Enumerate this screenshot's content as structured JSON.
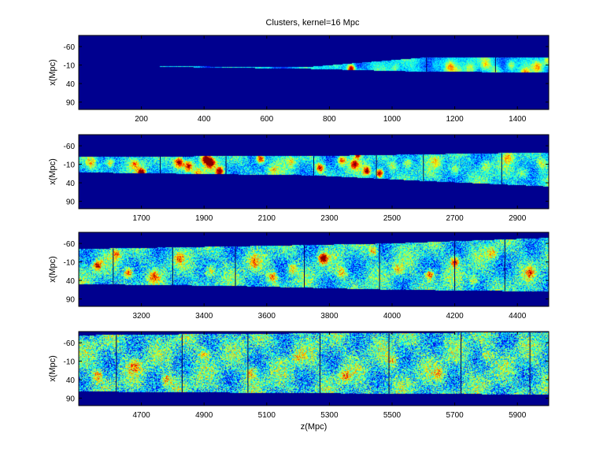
{
  "chart_data": {
    "type": "heatmap",
    "title": "Clusters, kernel=16 Mpc",
    "colormap": "jet",
    "background_color": "#00008f",
    "panels": [
      {
        "name": "",
        "xlim": [
          0,
          1500
        ],
        "ylim": [
          -90,
          110
        ],
        "x_ticks": [
          200,
          400,
          600,
          800,
          1000,
          1200,
          1400
        ],
        "y_ticks": [
          -60,
          -10,
          40,
          90
        ],
        "ylabel": "x(Mpc)",
        "xlabel": "",
        "survey_edges": {
          "z": [
            260,
            720,
            1100,
            1500
          ],
          "x_low": [
            -7,
            -4,
            -30,
            -31
          ],
          "x_high": [
            -5,
            0,
            8,
            10
          ]
        },
        "seam_z": [
          1110,
          1330
        ],
        "noise_level": 0.18,
        "hotspots": [
          {
            "z": 870,
            "x": 0,
            "v": 1.0,
            "r": 11
          },
          {
            "z": 900,
            "x": 8,
            "v": 0.45,
            "r": 9
          },
          {
            "z": 1010,
            "x": -2,
            "v": 0.35,
            "r": 10
          },
          {
            "z": 1140,
            "x": -10,
            "v": 0.35,
            "r": 14
          },
          {
            "z": 1185,
            "x": -5,
            "v": 0.55,
            "r": 14
          },
          {
            "z": 1250,
            "x": 0,
            "v": 0.45,
            "r": 15
          },
          {
            "z": 1300,
            "x": -12,
            "v": 0.5,
            "r": 14
          },
          {
            "z": 1330,
            "x": 5,
            "v": 0.45,
            "r": 14
          },
          {
            "z": 1380,
            "x": -10,
            "v": 0.5,
            "r": 14
          },
          {
            "z": 1425,
            "x": 12,
            "v": 0.55,
            "r": 13
          },
          {
            "z": 1465,
            "x": -5,
            "v": 0.55,
            "r": 14
          },
          {
            "z": 1495,
            "x": -20,
            "v": 0.45,
            "r": 10
          },
          {
            "z": 1210,
            "x": 15,
            "v": 0.35,
            "r": 14
          },
          {
            "z": 1065,
            "x": 5,
            "v": 0.25,
            "r": 12
          },
          {
            "z": 540,
            "x": -3,
            "v": 0.22,
            "r": 10
          },
          {
            "z": 660,
            "x": -2,
            "v": 0.2,
            "r": 10
          },
          {
            "z": 420,
            "x": -4,
            "v": 0.2,
            "r": 10
          }
        ]
      },
      {
        "name": "",
        "xlim": [
          1500,
          3000
        ],
        "ylim": [
          -90,
          110
        ],
        "x_ticks": [
          1700,
          1900,
          2100,
          2300,
          2500,
          2700,
          2900
        ],
        "y_ticks": [
          -60,
          -10,
          40,
          90
        ],
        "ylabel": "x(Mpc)",
        "xlabel": "",
        "survey_edges": {
          "z": [
            1500,
            2250,
            2600,
            3000
          ],
          "x_low": [
            -31,
            -32,
            -37,
            -42
          ],
          "x_high": [
            12,
            20,
            35,
            50
          ]
        },
        "seam_z": [
          1760,
          1970,
          2250,
          2450,
          2600,
          2850
        ],
        "noise_level": 0.3,
        "hotspots": [
          {
            "z": 1540,
            "x": -12,
            "v": 0.5,
            "r": 14
          },
          {
            "z": 1600,
            "x": -14,
            "v": 0.6,
            "r": 13
          },
          {
            "z": 1680,
            "x": -10,
            "v": 0.5,
            "r": 12
          },
          {
            "z": 1700,
            "x": 12,
            "v": 0.95,
            "r": 11
          },
          {
            "z": 1820,
            "x": -15,
            "v": 0.95,
            "r": 14
          },
          {
            "z": 1850,
            "x": -5,
            "v": 0.85,
            "r": 14
          },
          {
            "z": 1880,
            "x": 15,
            "v": 0.55,
            "r": 13
          },
          {
            "z": 1905,
            "x": -25,
            "v": 0.9,
            "r": 11
          },
          {
            "z": 1920,
            "x": -15,
            "v": 1.0,
            "r": 13
          },
          {
            "z": 1950,
            "x": 10,
            "v": 0.95,
            "r": 12
          },
          {
            "z": 2080,
            "x": -25,
            "v": 0.9,
            "r": 12
          },
          {
            "z": 2120,
            "x": 5,
            "v": 0.45,
            "r": 13
          },
          {
            "z": 2180,
            "x": -18,
            "v": 0.45,
            "r": 13
          },
          {
            "z": 2270,
            "x": 0,
            "v": 0.85,
            "r": 11
          },
          {
            "z": 2340,
            "x": -20,
            "v": 0.75,
            "r": 12
          },
          {
            "z": 2380,
            "x": -10,
            "v": 0.8,
            "r": 11
          },
          {
            "z": 2420,
            "x": 8,
            "v": 0.85,
            "r": 11
          },
          {
            "z": 2390,
            "x": -35,
            "v": 0.85,
            "r": 8
          },
          {
            "z": 2460,
            "x": 15,
            "v": 1.0,
            "r": 11
          },
          {
            "z": 2500,
            "x": -5,
            "v": 0.45,
            "r": 13
          },
          {
            "z": 2550,
            "x": -15,
            "v": 0.55,
            "r": 13
          },
          {
            "z": 2640,
            "x": -18,
            "v": 0.45,
            "r": 14
          },
          {
            "z": 2700,
            "x": 5,
            "v": 0.5,
            "r": 15
          },
          {
            "z": 2800,
            "x": -5,
            "v": 0.45,
            "r": 15
          },
          {
            "z": 2870,
            "x": -28,
            "v": 0.5,
            "r": 14
          },
          {
            "z": 2920,
            "x": 15,
            "v": 0.45,
            "r": 15
          },
          {
            "z": 2980,
            "x": -10,
            "v": 0.45,
            "r": 14
          }
        ]
      },
      {
        "name": "",
        "xlim": [
          3000,
          4500
        ],
        "ylim": [
          -90,
          110
        ],
        "x_ticks": [
          3200,
          3400,
          3600,
          3800,
          4000,
          4200,
          4400
        ],
        "y_ticks": [
          -60,
          -10,
          40,
          90
        ],
        "ylabel": "x(Mpc)",
        "xlabel": "",
        "survey_edges": {
          "z": [
            3000,
            3500,
            4000,
            4500
          ],
          "x_low": [
            -45,
            -52,
            -60,
            -75
          ],
          "x_high": [
            50,
            55,
            65,
            70
          ]
        },
        "seam_z": [
          3110,
          3300,
          3500,
          3720,
          3960,
          4200,
          4360
        ],
        "noise_level": 0.38,
        "hotspots": [
          {
            "z": 3060,
            "x": 0,
            "v": 0.75,
            "r": 12
          },
          {
            "z": 3120,
            "x": -30,
            "v": 0.55,
            "r": 13
          },
          {
            "z": 3160,
            "x": 20,
            "v": 0.75,
            "r": 13
          },
          {
            "z": 3240,
            "x": 30,
            "v": 0.6,
            "r": 14
          },
          {
            "z": 3320,
            "x": -20,
            "v": 0.55,
            "r": 14
          },
          {
            "z": 3420,
            "x": 15,
            "v": 0.55,
            "r": 15
          },
          {
            "z": 3560,
            "x": -10,
            "v": 0.5,
            "r": 15
          },
          {
            "z": 3620,
            "x": 30,
            "v": 0.65,
            "r": 14
          },
          {
            "z": 3680,
            "x": 10,
            "v": 0.5,
            "r": 14
          },
          {
            "z": 3780,
            "x": -20,
            "v": 1.0,
            "r": 12
          },
          {
            "z": 3840,
            "x": 20,
            "v": 0.55,
            "r": 13
          },
          {
            "z": 3940,
            "x": -40,
            "v": 0.55,
            "r": 14
          },
          {
            "z": 4020,
            "x": 10,
            "v": 0.5,
            "r": 15
          },
          {
            "z": 4120,
            "x": 25,
            "v": 0.75,
            "r": 13
          },
          {
            "z": 4200,
            "x": -10,
            "v": 0.75,
            "r": 12
          },
          {
            "z": 4260,
            "x": 40,
            "v": 0.5,
            "r": 14
          },
          {
            "z": 4320,
            "x": -35,
            "v": 0.5,
            "r": 14
          },
          {
            "z": 4440,
            "x": 20,
            "v": 0.55,
            "r": 14
          }
        ]
      },
      {
        "name": "",
        "xlim": [
          4500,
          6000
        ],
        "ylim": [
          -90,
          110
        ],
        "x_ticks": [
          4700,
          4900,
          5100,
          5300,
          5500,
          5700,
          5900
        ],
        "y_ticks": [
          -60,
          -10,
          40,
          90
        ],
        "ylabel": "x(Mpc)",
        "xlabel": "z(Mpc)",
        "survey_edges": {
          "z": [
            4500,
            5000,
            5500,
            6000
          ],
          "x_low": [
            -80,
            -84,
            -86,
            -88
          ],
          "x_high": [
            72,
            75,
            78,
            80
          ]
        },
        "seam_z": [
          4620,
          4830,
          5040,
          5270,
          5490,
          5720,
          5940
        ],
        "noise_level": 0.45,
        "hotspots": [
          {
            "z": 4560,
            "x": 30,
            "v": 0.55,
            "r": 15
          },
          {
            "z": 4680,
            "x": 5,
            "v": 0.5,
            "r": 16
          },
          {
            "z": 4780,
            "x": 40,
            "v": 0.55,
            "r": 15
          },
          {
            "z": 4900,
            "x": -30,
            "v": 0.45,
            "r": 16
          },
          {
            "z": 5050,
            "x": 20,
            "v": 0.5,
            "r": 16
          },
          {
            "z": 5200,
            "x": -20,
            "v": 0.45,
            "r": 16
          },
          {
            "z": 5350,
            "x": 30,
            "v": 0.5,
            "r": 16
          },
          {
            "z": 5500,
            "x": -10,
            "v": 0.45,
            "r": 16
          },
          {
            "z": 5650,
            "x": 25,
            "v": 0.5,
            "r": 16
          },
          {
            "z": 5800,
            "x": -25,
            "v": 0.45,
            "r": 16
          }
        ]
      }
    ]
  }
}
